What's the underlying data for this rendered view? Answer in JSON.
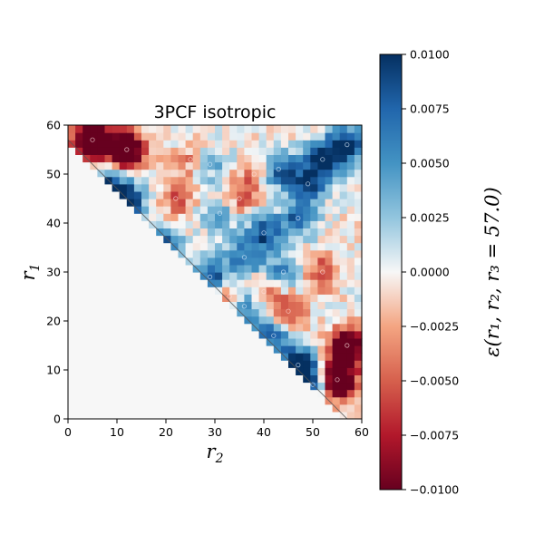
{
  "chart_data": {
    "type": "heatmap",
    "title": "3PCF isotropic",
    "xlabel": "r",
    "xlabel_sub": "2",
    "ylabel": "r",
    "ylabel_sub": "1",
    "xlim": [
      0,
      60
    ],
    "ylim": [
      0,
      60
    ],
    "x_ticks": [
      "0",
      "10",
      "20",
      "30",
      "40",
      "50",
      "60"
    ],
    "y_ticks": [
      "0",
      "10",
      "20",
      "30",
      "40",
      "50",
      "60"
    ],
    "colormap": "RdBu",
    "color_range": [
      -0.01,
      0.01
    ],
    "colorbar": {
      "label": "ε(r₁, r₂, r₃ = 57.0)",
      "ticks": [
        "0.0100",
        "0.0075",
        "0.0050",
        "0.0025",
        "0.0000",
        "−0.0025",
        "−0.0050",
        "−0.0075",
        "−0.0100"
      ]
    },
    "masked_region": "r1 + r2 < 57",
    "contour_color": "#555555",
    "blobs": [
      {
        "r2": 8,
        "r1": 47,
        "value": 0.012
      },
      {
        "r2": 12,
        "r1": 44,
        "value": 0.011
      },
      {
        "r2": 19,
        "r1": 35,
        "value": 0.01
      },
      {
        "r2": 29,
        "r1": 29,
        "value": 0.01
      },
      {
        "r2": 36,
        "r1": 23,
        "value": 0.009
      },
      {
        "r2": 42,
        "r1": 17,
        "value": 0.008
      },
      {
        "r2": 47,
        "r1": 11,
        "value": 0.012
      },
      {
        "r2": 50,
        "r1": 7,
        "value": 0.01
      },
      {
        "r2": 57,
        "r1": 56,
        "value": 0.011
      },
      {
        "r2": 52,
        "r1": 53,
        "value": 0.01
      },
      {
        "r2": 49,
        "r1": 48,
        "value": 0.009
      },
      {
        "r2": 43,
        "r1": 51,
        "value": 0.008
      },
      {
        "r2": 47,
        "r1": 41,
        "value": 0.007
      },
      {
        "r2": 40,
        "r1": 38,
        "value": 0.008
      },
      {
        "r2": 36,
        "r1": 33,
        "value": 0.007
      },
      {
        "r2": 44,
        "r1": 30,
        "value": 0.006
      },
      {
        "r2": 31,
        "r1": 42,
        "value": 0.005
      },
      {
        "r2": 29,
        "r1": 52,
        "value": 0.004
      },
      {
        "r2": 24,
        "r1": 28,
        "value": -0.004
      },
      {
        "r2": 33,
        "r1": 25,
        "value": -0.006
      },
      {
        "r2": 40,
        "r1": 26,
        "value": -0.005
      },
      {
        "r2": 45,
        "r1": 22,
        "value": -0.007
      },
      {
        "r2": 52,
        "r1": 30,
        "value": -0.006
      },
      {
        "r2": 22,
        "r1": 45,
        "value": -0.005
      },
      {
        "r2": 25,
        "r1": 53,
        "value": -0.004
      },
      {
        "r2": 38,
        "r1": 50,
        "value": -0.004
      },
      {
        "r2": 35,
        "r1": 45,
        "value": -0.005
      },
      {
        "r2": 5,
        "r1": 57,
        "value": -0.02
      },
      {
        "r2": 12,
        "r1": 55,
        "value": -0.016
      },
      {
        "r2": 55,
        "r1": 8,
        "value": -0.018
      },
      {
        "r2": 57,
        "r1": 15,
        "value": -0.015
      }
    ]
  }
}
